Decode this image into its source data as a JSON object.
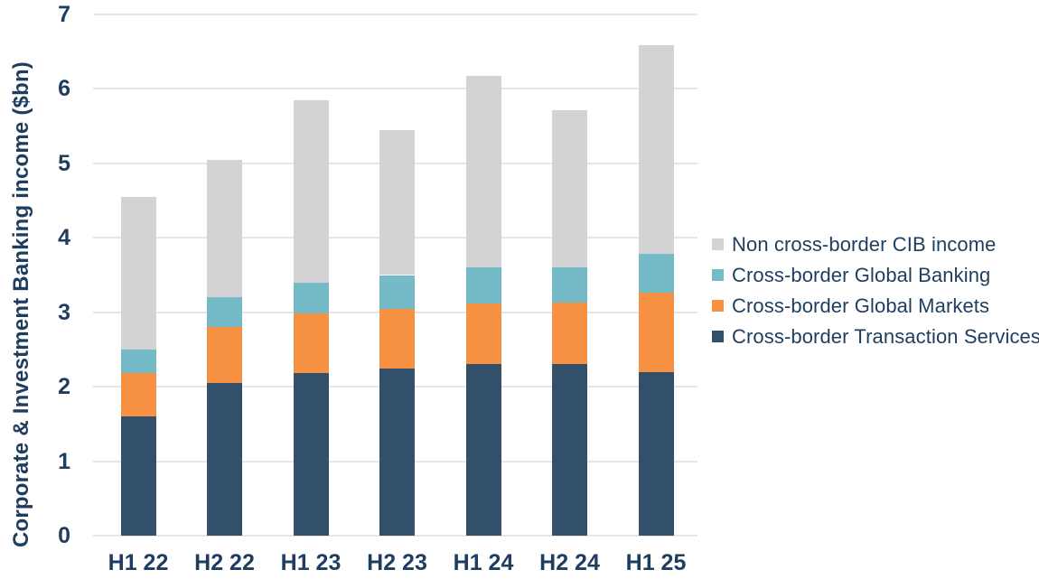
{
  "chart_data": {
    "type": "bar",
    "stacked": true,
    "title": "",
    "xlabel": "",
    "ylabel": "Corporate & Investment Banking income ($bn)",
    "ylim": [
      0,
      7
    ],
    "yticks": [
      0,
      1,
      2,
      3,
      4,
      5,
      6,
      7
    ],
    "grid": true,
    "legend_position": "right",
    "categories": [
      "H1 22",
      "H2 22",
      "H1 23",
      "H2 23",
      "H1 24",
      "H2 24",
      "H1 25"
    ],
    "series": [
      {
        "name": "Cross-border Transaction Services",
        "color": "#33506B",
        "values": [
          1.6,
          2.05,
          2.18,
          2.25,
          2.3,
          2.3,
          2.2
        ]
      },
      {
        "name": "Cross-border Global Markets",
        "color": "#F79245",
        "values": [
          0.58,
          0.75,
          0.8,
          0.8,
          0.82,
          0.83,
          1.06
        ]
      },
      {
        "name": "Cross-border Global Banking",
        "color": "#74BBC7",
        "values": [
          0.32,
          0.4,
          0.42,
          0.45,
          0.48,
          0.47,
          0.53
        ]
      },
      {
        "name": "Non cross-border CIB income",
        "color": "#D3D3D3",
        "values": [
          2.05,
          1.85,
          2.45,
          1.95,
          2.58,
          2.12,
          2.8
        ]
      }
    ],
    "legend_order": [
      "Non cross-border CIB income",
      "Cross-border Global Banking",
      "Cross-border Global Markets",
      "Cross-border Transaction Services"
    ],
    "totals": [
      4.55,
      5.05,
      5.85,
      5.45,
      6.18,
      5.72,
      6.59
    ],
    "colors": {
      "text": "#1F3D5F",
      "gridline": "#E6E6E6",
      "background": "#FFFFFF"
    }
  }
}
